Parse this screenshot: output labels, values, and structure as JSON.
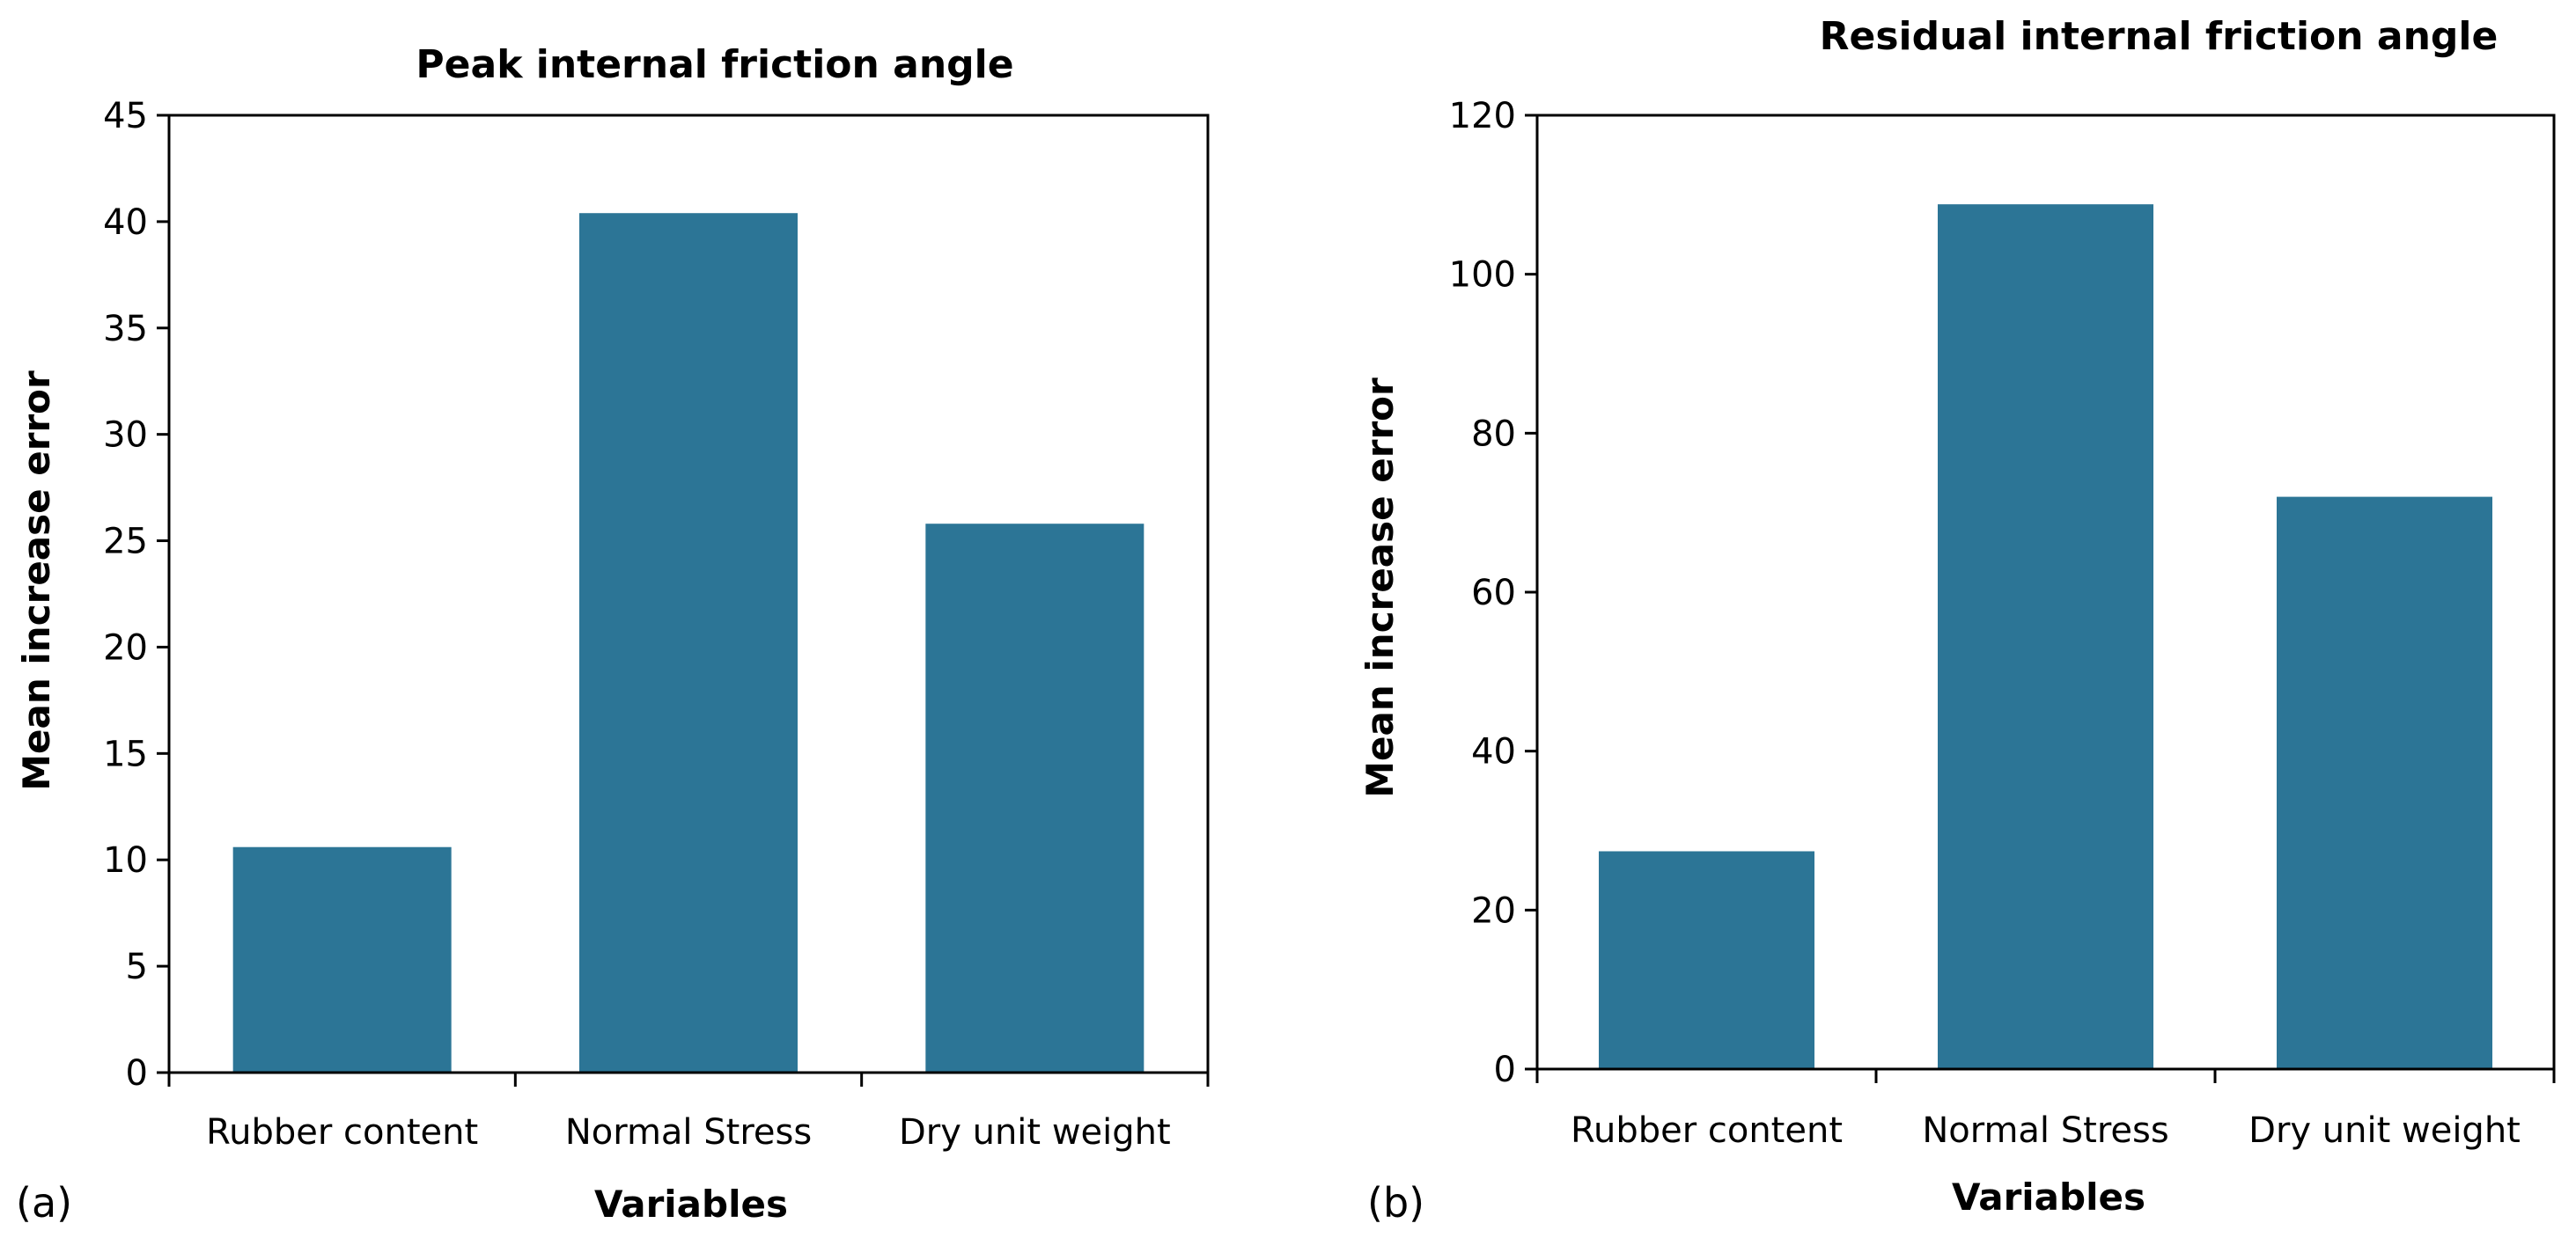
{
  "chart_data": [
    {
      "type": "bar",
      "panel_label": "(a)",
      "title": "Peak internal friction angle",
      "xlabel": "Variables",
      "ylabel": "Mean increase error",
      "categories": [
        "Rubber content",
        "Normal Stress",
        "Dry unit weight"
      ],
      "values": [
        10.6,
        40.4,
        25.8
      ],
      "ylim": [
        0,
        45
      ],
      "yticks": [
        0,
        5,
        10,
        15,
        20,
        25,
        30,
        35,
        40,
        45
      ],
      "grid": false,
      "bar_color": "#2C7596"
    },
    {
      "type": "bar",
      "panel_label": "(b)",
      "title": "Residual internal friction angle",
      "xlabel": "Variables",
      "ylabel": "Mean increase error",
      "categories": [
        "Rubber content",
        "Normal Stress",
        "Dry unit weight"
      ],
      "values": [
        27.4,
        108.8,
        72.0
      ],
      "ylim": [
        0,
        120
      ],
      "yticks": [
        0,
        20,
        40,
        60,
        80,
        100,
        120
      ],
      "grid": false,
      "bar_color": "#2C7596"
    }
  ]
}
